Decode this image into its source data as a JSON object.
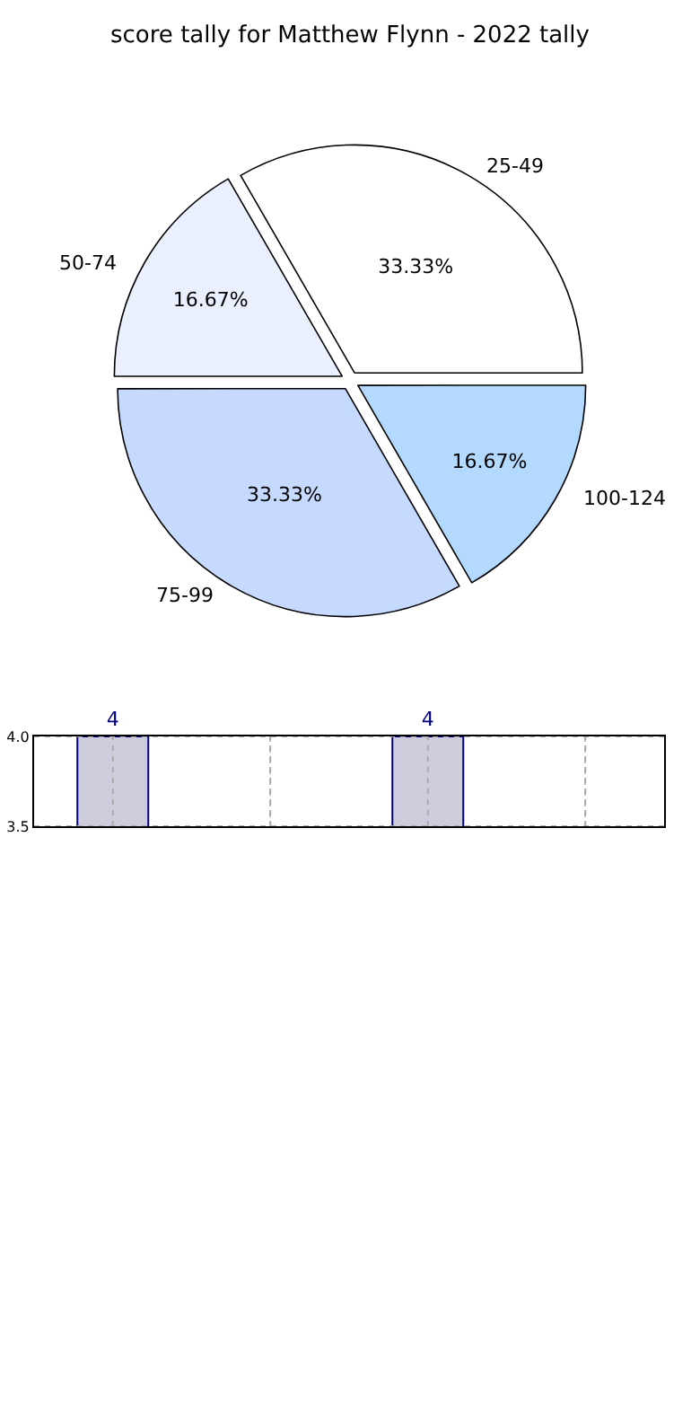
{
  "chart_data": [
    {
      "type": "pie",
      "title": "score tally for Matthew Flynn - 2022 tally",
      "categories": [
        "25-49",
        "100-124",
        "75-99",
        "50-74"
      ],
      "values": [
        33.33,
        16.67,
        33.33,
        16.67
      ],
      "value_labels": [
        "33.33%",
        "16.67%",
        "33.33%",
        "16.67%"
      ],
      "colors": [
        "#ffffff",
        "#b3d9ff",
        "#c6d9ff",
        "#eaf0ff"
      ],
      "legend": false
    },
    {
      "type": "bar",
      "categories": [
        null,
        null,
        null,
        null
      ],
      "values": [
        4,
        null,
        4,
        null
      ],
      "value_labels": [
        "4",
        null,
        "4",
        null
      ],
      "color": "#ccccdd",
      "ylim": [
        3.5,
        4.0
      ],
      "yticks": [
        {
          "value": 3.5,
          "label": "3.5"
        },
        {
          "value": 4.0,
          "label": "4.0"
        }
      ],
      "grid": true,
      "legend": false
    }
  ]
}
